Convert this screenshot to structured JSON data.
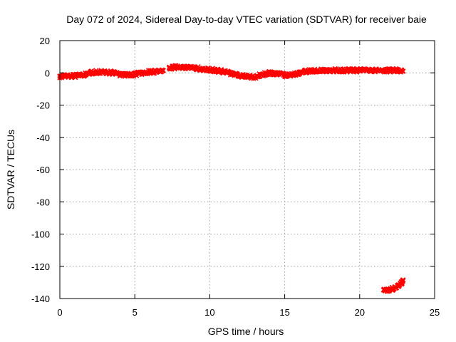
{
  "chart_data": {
    "type": "scatter",
    "title": "Day 072 of 2024, Sidereal Day-to-day VTEC variation (SDTVAR) for receiver baie",
    "xlabel": "GPS time / hours",
    "ylabel": "SDTVAR / TECUs",
    "xlim": [
      0,
      25
    ],
    "ylim": [
      -140,
      20
    ],
    "xticks": [
      0,
      5,
      10,
      15,
      20,
      25
    ],
    "yticks": [
      20,
      0,
      -20,
      -40,
      -60,
      -80,
      -100,
      -120,
      -140
    ],
    "xtick_labels": [
      "0",
      "5",
      "10",
      "15",
      "20",
      "25"
    ],
    "ytick_labels": [
      "20",
      "0",
      "-20",
      "-40",
      "-60",
      "-80",
      "-100",
      "-120",
      "-140"
    ],
    "grid": true,
    "series": [
      {
        "name": "SDTVAR",
        "color": "#ff0000",
        "marker": "cross",
        "segments": [
          {
            "x": [
              0.0,
              0.5,
              1.0,
              1.5,
              2.0,
              2.5,
              3.0,
              3.5,
              4.0,
              4.5,
              5.0,
              5.5,
              6.0,
              6.5,
              6.9
            ],
            "y": [
              -2,
              -2,
              -2,
              -1.5,
              0,
              0.5,
              0.5,
              0,
              -1,
              -1.5,
              -1,
              0,
              0.5,
              1,
              1.5
            ]
          },
          {
            "x": [
              7.3,
              7.7,
              8.0,
              8.5,
              9.0,
              9.5,
              10.0,
              10.5,
              11.0,
              11.5,
              12.0,
              12.5,
              13.0,
              13.5,
              14.0,
              14.5,
              15.0,
              15.5,
              16.0,
              16.5,
              17.0,
              17.5,
              18.0,
              18.5,
              19.0,
              19.5,
              20.0,
              20.5,
              21.0,
              21.5,
              22.0,
              22.5,
              22.9
            ],
            "y": [
              3,
              3.5,
              3.5,
              3.5,
              3,
              2.5,
              2,
              1.5,
              0.5,
              -0.5,
              -1.5,
              -2.5,
              -2.5,
              -1,
              0,
              -0.5,
              -1.5,
              -1,
              0,
              1,
              1.5,
              1.5,
              1.5,
              1.5,
              1.5,
              1.5,
              1.5,
              1.5,
              1.5,
              1.5,
              1.5,
              1.5,
              1
            ]
          },
          {
            "x": [
              21.6,
              21.8,
              22.0,
              22.2,
              22.4,
              22.6,
              22.8,
              22.9
            ],
            "y": [
              -134.5,
              -134.5,
              -134.5,
              -134,
              -133.5,
              -132,
              -130,
              -128.5
            ]
          }
        ]
      }
    ]
  }
}
